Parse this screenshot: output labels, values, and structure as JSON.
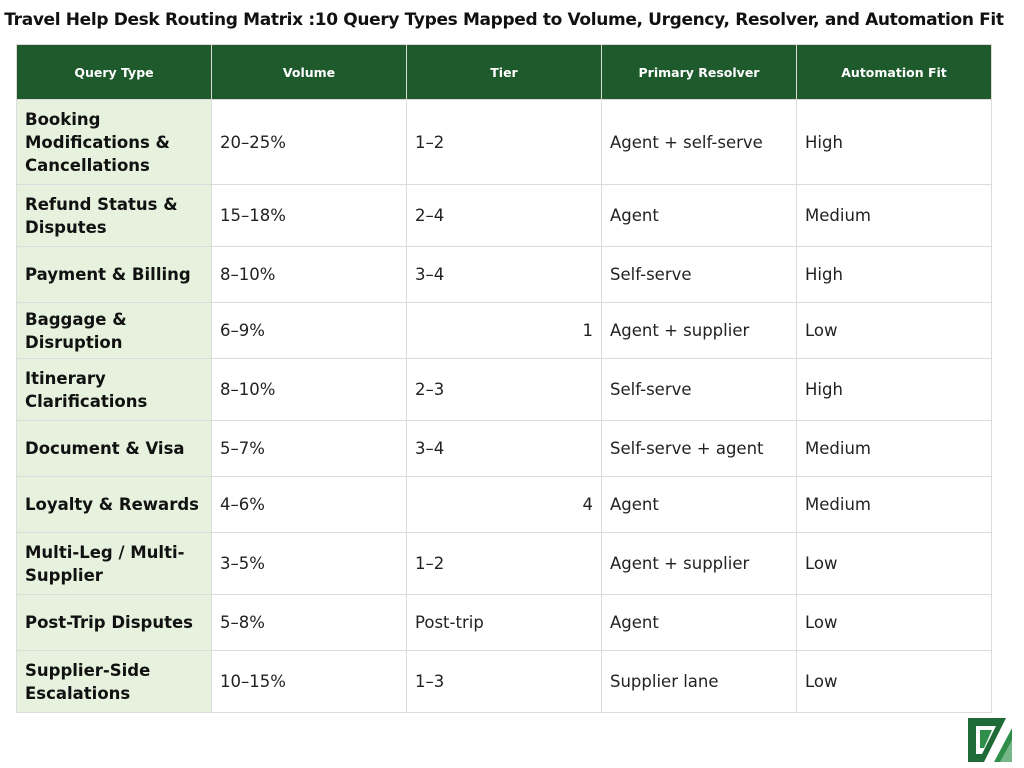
{
  "title": "Travel Help Desk Routing Matrix :10 Query Types Mapped to Volume, Urgency, Resolver, and Automation Fit",
  "columns": [
    "Query Type",
    "Volume",
    "Tier",
    "Primary Resolver",
    "Automation Fit"
  ],
  "rows": [
    {
      "query_type": "Booking Modifications & Cancellations",
      "volume": "20–25%",
      "tier": "1–2",
      "resolver": "Agent + self-serve",
      "automation": "High"
    },
    {
      "query_type": "Refund Status & Disputes",
      "volume": "15–18%",
      "tier": "2–4",
      "resolver": "Agent",
      "automation": "Medium"
    },
    {
      "query_type": "Payment & Billing",
      "volume": "8–10%",
      "tier": "3–4",
      "resolver": "Self-serve",
      "automation": "High"
    },
    {
      "query_type": "Baggage & Disruption",
      "volume": "6–9%",
      "tier": "1",
      "resolver": "Agent + supplier",
      "automation": "Low"
    },
    {
      "query_type": "Itinerary Clarifications",
      "volume": "8–10%",
      "tier": "2–3",
      "resolver": "Self-serve",
      "automation": "High"
    },
    {
      "query_type": "Document & Visa",
      "volume": "5–7%",
      "tier": "3–4",
      "resolver": "Self-serve + agent",
      "automation": "Medium"
    },
    {
      "query_type": "Loyalty & Rewards",
      "volume": "4–6%",
      "tier": "4",
      "resolver": "Agent",
      "automation": "Medium"
    },
    {
      "query_type": "Multi-Leg / Multi-Supplier",
      "volume": "3–5%",
      "tier": "1–2",
      "resolver": "Agent + supplier",
      "automation": "Low"
    },
    {
      "query_type": "Post-Trip Disputes",
      "volume": "5–8%",
      "tier": "Post-trip",
      "resolver": "Agent",
      "automation": "Low"
    },
    {
      "query_type": "Supplier-Side Escalations",
      "volume": "10–15%",
      "tier": "1–3",
      "resolver": "Supplier lane",
      "automation": "Low"
    }
  ],
  "logo": {
    "icon": "brand-logo-icon",
    "colors": {
      "primary": "#1e6b37",
      "accent": "#2f8f4a"
    }
  }
}
